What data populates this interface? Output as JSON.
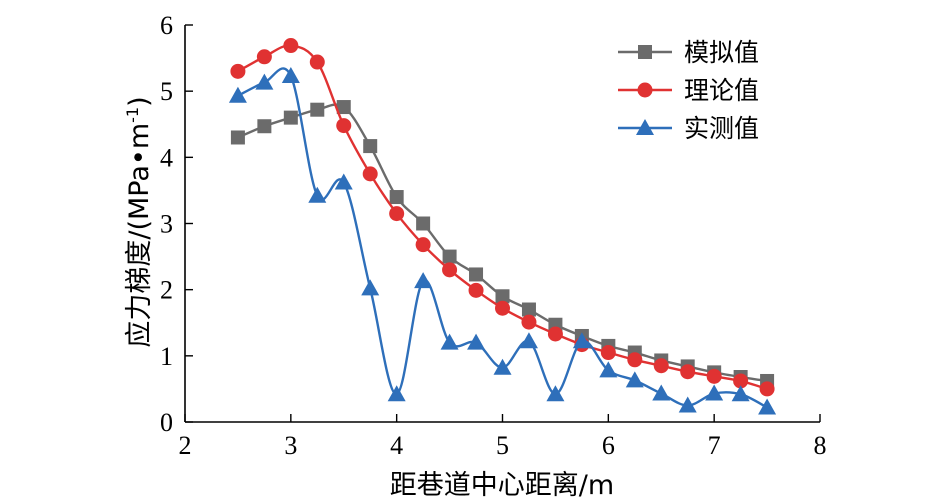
{
  "chart_data": {
    "type": "line",
    "xlabel": "距巷道中心距离/m",
    "ylabel": "应力梯度/(MPa•m",
    "ylabel_sup": "-1",
    "ylabel_close": ")",
    "xlim": [
      2,
      8
    ],
    "ylim": [
      0,
      6
    ],
    "xticks": [
      2,
      3,
      4,
      5,
      6,
      7,
      8
    ],
    "yticks": [
      0,
      1,
      2,
      3,
      4,
      5,
      6
    ],
    "grid": false,
    "legend_position": "top-right",
    "x": [
      2.5,
      2.75,
      3.0,
      3.25,
      3.5,
      3.75,
      4.0,
      4.25,
      4.5,
      4.75,
      5.0,
      5.25,
      5.5,
      5.75,
      6.0,
      6.25,
      6.5,
      6.75,
      7.0,
      7.25,
      7.5
    ],
    "series": [
      {
        "name": "模拟值",
        "color": "#6b6b6b",
        "marker": "square",
        "values": [
          4.3,
          4.47,
          4.6,
          4.72,
          4.76,
          4.17,
          3.4,
          3.0,
          2.5,
          2.23,
          1.9,
          1.7,
          1.47,
          1.3,
          1.15,
          1.05,
          0.93,
          0.84,
          0.75,
          0.68,
          0.62
        ]
      },
      {
        "name": "理论值",
        "color": "#e03232",
        "marker": "circle",
        "values": [
          5.3,
          5.52,
          5.69,
          5.44,
          4.48,
          3.75,
          3.15,
          2.68,
          2.3,
          1.99,
          1.72,
          1.51,
          1.33,
          1.17,
          1.05,
          0.94,
          0.85,
          0.76,
          0.69,
          0.62,
          0.5
        ]
      },
      {
        "name": "实测值",
        "color": "#2e6fba",
        "marker": "triangle",
        "values": [
          4.93,
          5.13,
          5.23,
          3.42,
          3.62,
          2.02,
          0.42,
          2.13,
          1.2,
          1.2,
          0.82,
          1.22,
          0.42,
          1.22,
          0.78,
          0.63,
          0.43,
          0.25,
          0.43,
          0.42,
          0.22
        ]
      }
    ]
  }
}
